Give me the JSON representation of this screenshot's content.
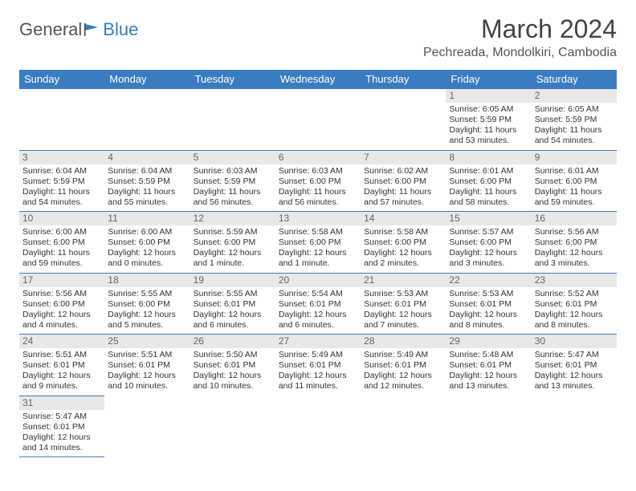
{
  "logo": {
    "text1": "General",
    "text2": "Blue"
  },
  "title": "March 2024",
  "location": "Pechreada, Mondolkiri, Cambodia",
  "colors": {
    "header_bg": "#3b7bbf",
    "border": "#3b7bbf",
    "daynum_bg": "#e8e8e8"
  },
  "weekdays": [
    "Sunday",
    "Monday",
    "Tuesday",
    "Wednesday",
    "Thursday",
    "Friday",
    "Saturday"
  ],
  "weeks": [
    [
      null,
      null,
      null,
      null,
      null,
      {
        "n": "1",
        "sr": "Sunrise: 6:05 AM",
        "ss": "Sunset: 5:59 PM",
        "dl1": "Daylight: 11 hours",
        "dl2": "and 53 minutes."
      },
      {
        "n": "2",
        "sr": "Sunrise: 6:05 AM",
        "ss": "Sunset: 5:59 PM",
        "dl1": "Daylight: 11 hours",
        "dl2": "and 54 minutes."
      }
    ],
    [
      {
        "n": "3",
        "sr": "Sunrise: 6:04 AM",
        "ss": "Sunset: 5:59 PM",
        "dl1": "Daylight: 11 hours",
        "dl2": "and 54 minutes."
      },
      {
        "n": "4",
        "sr": "Sunrise: 6:04 AM",
        "ss": "Sunset: 5:59 PM",
        "dl1": "Daylight: 11 hours",
        "dl2": "and 55 minutes."
      },
      {
        "n": "5",
        "sr": "Sunrise: 6:03 AM",
        "ss": "Sunset: 5:59 PM",
        "dl1": "Daylight: 11 hours",
        "dl2": "and 56 minutes."
      },
      {
        "n": "6",
        "sr": "Sunrise: 6:03 AM",
        "ss": "Sunset: 6:00 PM",
        "dl1": "Daylight: 11 hours",
        "dl2": "and 56 minutes."
      },
      {
        "n": "7",
        "sr": "Sunrise: 6:02 AM",
        "ss": "Sunset: 6:00 PM",
        "dl1": "Daylight: 11 hours",
        "dl2": "and 57 minutes."
      },
      {
        "n": "8",
        "sr": "Sunrise: 6:01 AM",
        "ss": "Sunset: 6:00 PM",
        "dl1": "Daylight: 11 hours",
        "dl2": "and 58 minutes."
      },
      {
        "n": "9",
        "sr": "Sunrise: 6:01 AM",
        "ss": "Sunset: 6:00 PM",
        "dl1": "Daylight: 11 hours",
        "dl2": "and 59 minutes."
      }
    ],
    [
      {
        "n": "10",
        "sr": "Sunrise: 6:00 AM",
        "ss": "Sunset: 6:00 PM",
        "dl1": "Daylight: 11 hours",
        "dl2": "and 59 minutes."
      },
      {
        "n": "11",
        "sr": "Sunrise: 6:00 AM",
        "ss": "Sunset: 6:00 PM",
        "dl1": "Daylight: 12 hours",
        "dl2": "and 0 minutes."
      },
      {
        "n": "12",
        "sr": "Sunrise: 5:59 AM",
        "ss": "Sunset: 6:00 PM",
        "dl1": "Daylight: 12 hours",
        "dl2": "and 1 minute."
      },
      {
        "n": "13",
        "sr": "Sunrise: 5:58 AM",
        "ss": "Sunset: 6:00 PM",
        "dl1": "Daylight: 12 hours",
        "dl2": "and 1 minute."
      },
      {
        "n": "14",
        "sr": "Sunrise: 5:58 AM",
        "ss": "Sunset: 6:00 PM",
        "dl1": "Daylight: 12 hours",
        "dl2": "and 2 minutes."
      },
      {
        "n": "15",
        "sr": "Sunrise: 5:57 AM",
        "ss": "Sunset: 6:00 PM",
        "dl1": "Daylight: 12 hours",
        "dl2": "and 3 minutes."
      },
      {
        "n": "16",
        "sr": "Sunrise: 5:56 AM",
        "ss": "Sunset: 6:00 PM",
        "dl1": "Daylight: 12 hours",
        "dl2": "and 3 minutes."
      }
    ],
    [
      {
        "n": "17",
        "sr": "Sunrise: 5:56 AM",
        "ss": "Sunset: 6:00 PM",
        "dl1": "Daylight: 12 hours",
        "dl2": "and 4 minutes."
      },
      {
        "n": "18",
        "sr": "Sunrise: 5:55 AM",
        "ss": "Sunset: 6:00 PM",
        "dl1": "Daylight: 12 hours",
        "dl2": "and 5 minutes."
      },
      {
        "n": "19",
        "sr": "Sunrise: 5:55 AM",
        "ss": "Sunset: 6:01 PM",
        "dl1": "Daylight: 12 hours",
        "dl2": "and 6 minutes."
      },
      {
        "n": "20",
        "sr": "Sunrise: 5:54 AM",
        "ss": "Sunset: 6:01 PM",
        "dl1": "Daylight: 12 hours",
        "dl2": "and 6 minutes."
      },
      {
        "n": "21",
        "sr": "Sunrise: 5:53 AM",
        "ss": "Sunset: 6:01 PM",
        "dl1": "Daylight: 12 hours",
        "dl2": "and 7 minutes."
      },
      {
        "n": "22",
        "sr": "Sunrise: 5:53 AM",
        "ss": "Sunset: 6:01 PM",
        "dl1": "Daylight: 12 hours",
        "dl2": "and 8 minutes."
      },
      {
        "n": "23",
        "sr": "Sunrise: 5:52 AM",
        "ss": "Sunset: 6:01 PM",
        "dl1": "Daylight: 12 hours",
        "dl2": "and 8 minutes."
      }
    ],
    [
      {
        "n": "24",
        "sr": "Sunrise: 5:51 AM",
        "ss": "Sunset: 6:01 PM",
        "dl1": "Daylight: 12 hours",
        "dl2": "and 9 minutes."
      },
      {
        "n": "25",
        "sr": "Sunrise: 5:51 AM",
        "ss": "Sunset: 6:01 PM",
        "dl1": "Daylight: 12 hours",
        "dl2": "and 10 minutes."
      },
      {
        "n": "26",
        "sr": "Sunrise: 5:50 AM",
        "ss": "Sunset: 6:01 PM",
        "dl1": "Daylight: 12 hours",
        "dl2": "and 10 minutes."
      },
      {
        "n": "27",
        "sr": "Sunrise: 5:49 AM",
        "ss": "Sunset: 6:01 PM",
        "dl1": "Daylight: 12 hours",
        "dl2": "and 11 minutes."
      },
      {
        "n": "28",
        "sr": "Sunrise: 5:49 AM",
        "ss": "Sunset: 6:01 PM",
        "dl1": "Daylight: 12 hours",
        "dl2": "and 12 minutes."
      },
      {
        "n": "29",
        "sr": "Sunrise: 5:48 AM",
        "ss": "Sunset: 6:01 PM",
        "dl1": "Daylight: 12 hours",
        "dl2": "and 13 minutes."
      },
      {
        "n": "30",
        "sr": "Sunrise: 5:47 AM",
        "ss": "Sunset: 6:01 PM",
        "dl1": "Daylight: 12 hours",
        "dl2": "and 13 minutes."
      }
    ],
    [
      {
        "n": "31",
        "sr": "Sunrise: 5:47 AM",
        "ss": "Sunset: 6:01 PM",
        "dl1": "Daylight: 12 hours",
        "dl2": "and 14 minutes."
      },
      null,
      null,
      null,
      null,
      null,
      null
    ]
  ]
}
